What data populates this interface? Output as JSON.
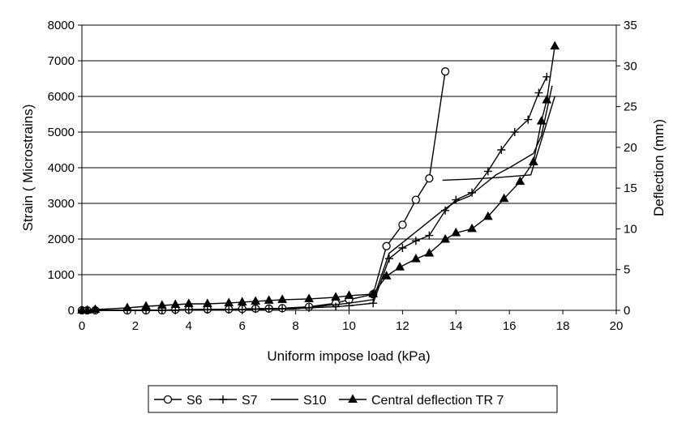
{
  "chart_data": {
    "type": "line",
    "xlabel": "Uniform impose load (kPa)",
    "ylabel": "Strain ( Microstrains)",
    "y2label": "Deflection (mm)",
    "xlim": [
      0,
      20
    ],
    "ylim": [
      0,
      8000
    ],
    "y2lim": [
      0,
      35
    ],
    "x_ticks": [
      "0",
      "2",
      "4",
      "6",
      "8",
      "10",
      "12",
      "14",
      "16",
      "18",
      "20"
    ],
    "y_ticks": [
      "0",
      "1000",
      "2000",
      "3000",
      "4000",
      "5000",
      "6000",
      "7000",
      "8000"
    ],
    "y2_ticks": [
      "0",
      "5",
      "10",
      "15",
      "20",
      "25",
      "30",
      "35"
    ],
    "grid": "horizontal",
    "legend_position": "bottom",
    "series": [
      {
        "name": "S6",
        "marker": "circle",
        "axis": "left",
        "x": [
          0,
          0.2,
          0.5,
          1.7,
          2.4,
          3,
          3.5,
          4,
          4.7,
          5.5,
          6,
          6.5,
          7,
          7.5,
          8.5,
          9.5,
          10,
          10.9,
          11.4,
          12,
          12.5,
          13,
          13.6
        ],
        "y": [
          0,
          0,
          0,
          0,
          0,
          0,
          20,
          20,
          30,
          30,
          40,
          50,
          50,
          60,
          100,
          200,
          300,
          450,
          1800,
          2400,
          3100,
          3700,
          6700
        ]
      },
      {
        "name": "S7",
        "marker": "plus",
        "axis": "left",
        "x": [
          0,
          0.2,
          0.5,
          1.7,
          2.4,
          3,
          3.5,
          4,
          4.7,
          5.5,
          6,
          6.5,
          7,
          7.5,
          8.5,
          9.5,
          10,
          10.9,
          11.5,
          12,
          12.5,
          13,
          13.6,
          14,
          14.6,
          15.2,
          15.7,
          16.2,
          16.7,
          17.1,
          17.4
        ],
        "y": [
          0,
          0,
          0,
          0,
          0,
          0,
          0,
          20,
          20,
          20,
          20,
          40,
          50,
          50,
          70,
          100,
          130,
          200,
          1450,
          1750,
          1950,
          2100,
          2800,
          3100,
          3300,
          3900,
          4500,
          5000,
          5350,
          6100,
          6550
        ]
      },
      {
        "name": "S10",
        "marker": "none",
        "axis": "left",
        "x": [
          0,
          2,
          4,
          6,
          8,
          10,
          10.9,
          11.5,
          12.5,
          13.5,
          14,
          14.5,
          15,
          15.5,
          16,
          16.9,
          17.2,
          17.6
        ],
        "y": [
          0,
          0,
          10,
          20,
          40,
          200,
          300,
          1600,
          2200,
          2800,
          3050,
          3200,
          3500,
          3800,
          4000,
          4400,
          4900,
          6300
        ]
      },
      {
        "name": "S10",
        "marker": "none",
        "axis": "left",
        "x": [
          13.5,
          14.5,
          15.5,
          16.8,
          17.7
        ],
        "y": [
          3650,
          3680,
          3720,
          3800,
          6000
        ]
      },
      {
        "name": "Central deflection TR 7",
        "marker": "triangle",
        "axis": "right",
        "x": [
          0,
          0.2,
          0.5,
          1.7,
          2.4,
          3,
          3.5,
          4,
          4.7,
          5.5,
          6,
          6.5,
          7,
          7.5,
          8.5,
          9.5,
          10,
          10.9,
          11.4,
          11.9,
          12.5,
          13,
          13.6,
          14,
          14.6,
          15.2,
          15.8,
          16.4,
          16.9,
          17.2,
          17.4,
          17.7
        ],
        "y": [
          0,
          0,
          0.1,
          0.3,
          0.5,
          0.6,
          0.7,
          0.8,
          0.8,
          0.9,
          1.0,
          1.1,
          1.2,
          1.3,
          1.4,
          1.6,
          1.8,
          2.0,
          4.2,
          5.3,
          6.3,
          7.0,
          8.7,
          9.5,
          10.0,
          11.5,
          13.7,
          15.8,
          18.2,
          23.2,
          25.8,
          32.4
        ]
      }
    ],
    "legend_labels": [
      "S6",
      "S7",
      "S10",
      "Central deflection TR 7"
    ]
  }
}
